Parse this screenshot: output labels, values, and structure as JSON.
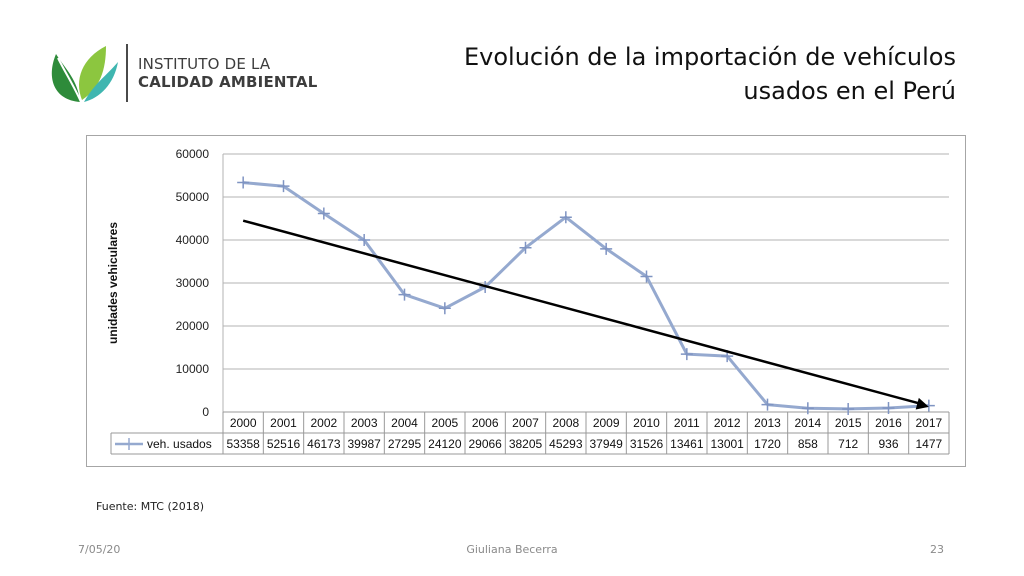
{
  "header": {
    "logo_line1": "INSTITUTO DE LA",
    "logo_line2": "CALIDAD AMBIENTAL",
    "title_line1": "Evolución de la importación de vehículos",
    "title_line2": "usados en el Perú"
  },
  "colors": {
    "series": "#95a9cf",
    "trend": "#000000",
    "grid": "#b3b3b3",
    "logo_green_dark": "#2e8b3a",
    "logo_green_light": "#8cc63f",
    "logo_teal": "#3fb6b0"
  },
  "chart_data": {
    "type": "line",
    "categories": [
      "2000",
      "2001",
      "2002",
      "2003",
      "2004",
      "2005",
      "2006",
      "2007",
      "2008",
      "2009",
      "2010",
      "2011",
      "2012",
      "2013",
      "2014",
      "2015",
      "2016",
      "2017"
    ],
    "series": [
      {
        "name": "veh. usados",
        "values": [
          53358,
          52516,
          46173,
          39987,
          27295,
          24120,
          29066,
          38205,
          45293,
          37949,
          31526,
          13461,
          13001,
          1720,
          858,
          712,
          936,
          1477
        ]
      }
    ],
    "trendline": {
      "from": {
        "x": "2000",
        "y": 44500
      },
      "to": {
        "x": "2017",
        "y": 1200
      }
    },
    "ylabel": "unidades vehiculares",
    "yticks": [
      "60000",
      "50000",
      "40000",
      "30000",
      "20000",
      "10000",
      "0"
    ],
    "ylim": [
      0,
      60000
    ],
    "grid": true,
    "data_table": true
  },
  "source": "Fuente: MTC (2018)",
  "footer": {
    "date": "7/05/20",
    "author": "Giuliana Becerra",
    "page": "23"
  }
}
